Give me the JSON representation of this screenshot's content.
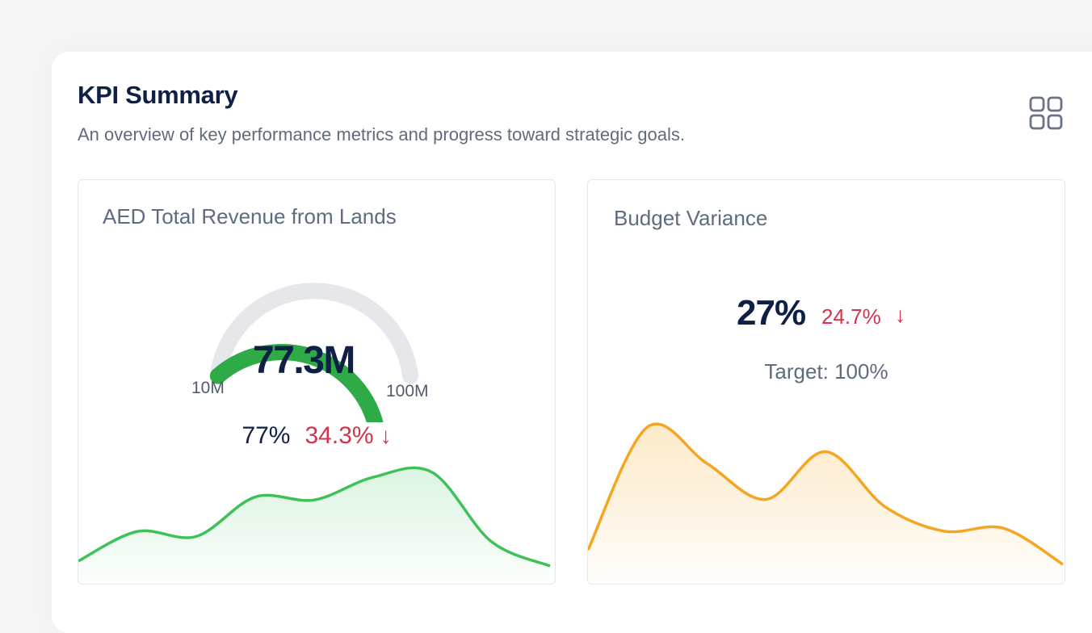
{
  "header": {
    "title": "KPI Summary",
    "subtitle": "An overview of key performance metrics and progress toward strategic goals.",
    "layout_icon": "grid-icon"
  },
  "cards": {
    "revenue": {
      "title": "AED Total Revenue from Lands",
      "gauge": {
        "value_label": "77.3M",
        "min_label": "10M",
        "max_label": "100M",
        "min": 10,
        "max": 100,
        "value": 77.3,
        "fill_color": "#2eaa47",
        "track_color": "#e5e7eb"
      },
      "percent": "77%",
      "change": "34.3%",
      "change_icon": "arrow-down-icon",
      "sparkline": {
        "color": "#3fc15a",
        "values": [
          1,
          4,
          3.5,
          7.5,
          7.2,
          9.5,
          10,
          3,
          0.5
        ]
      }
    },
    "budget": {
      "title": "Budget Variance",
      "value": "27%",
      "change": "24.7%",
      "change_icon": "arrow-down-icon",
      "target": "Target: 100%",
      "sparkline": {
        "color": "#f4a623",
        "values": [
          1,
          9.5,
          7,
          4.5,
          7.8,
          4,
          2.3,
          2.5,
          0
        ]
      }
    }
  },
  "colors": {
    "title": "#0f1f45",
    "muted": "#5f6b7e",
    "negative": "#d4344b"
  }
}
